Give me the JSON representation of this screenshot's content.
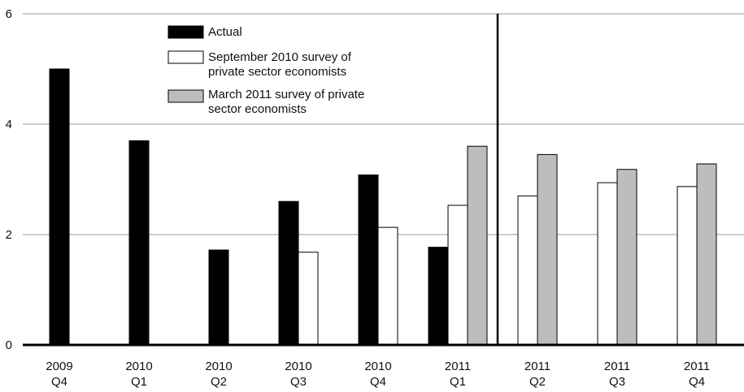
{
  "chart_data": {
    "type": "bar",
    "title": "",
    "xlabel": "",
    "ylabel": "",
    "ylim": [
      0,
      6
    ],
    "yticks": [
      0,
      2,
      4,
      6
    ],
    "grid": true,
    "legend_position": "top-left",
    "categories": [
      [
        "2009",
        "Q4"
      ],
      [
        "2010",
        "Q1"
      ],
      [
        "2010",
        "Q2"
      ],
      [
        "2010",
        "Q3"
      ],
      [
        "2010",
        "Q4"
      ],
      [
        "2011",
        "Q1"
      ],
      [
        "2011",
        "Q2"
      ],
      [
        "2011",
        "Q3"
      ],
      [
        "2011",
        "Q4"
      ]
    ],
    "series": [
      {
        "name": "Actual",
        "color": "#000000",
        "values": [
          5.0,
          3.7,
          1.72,
          2.6,
          3.08,
          1.77,
          null,
          null,
          null
        ]
      },
      {
        "name": "September 2010 survey of private sector economists",
        "label_lines": [
          "September 2010 survey of",
          "private sector economists"
        ],
        "color": "#ffffff",
        "values": [
          null,
          null,
          null,
          1.68,
          2.13,
          2.53,
          2.7,
          2.94,
          2.87
        ]
      },
      {
        "name": "March 2011 survey of private sector economists",
        "label_lines": [
          "March 2011 survey of private",
          "sector economists"
        ],
        "color": "#bdbdbd",
        "values": [
          null,
          null,
          null,
          null,
          null,
          3.6,
          3.45,
          3.18,
          3.28
        ]
      }
    ],
    "divider_after_category": 5
  }
}
